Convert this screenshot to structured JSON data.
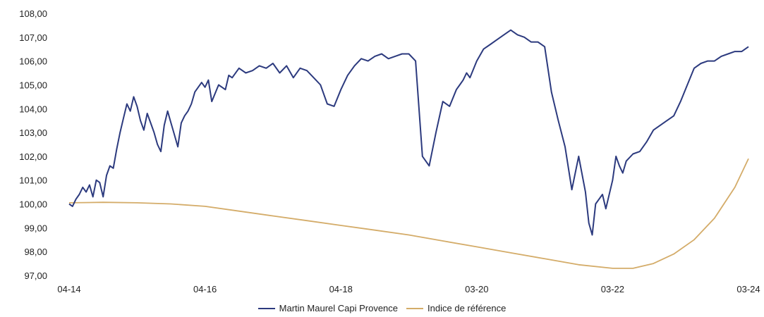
{
  "chart_data": {
    "type": "line",
    "title": "",
    "xlabel": "",
    "ylabel": "",
    "ylim": [
      97,
      108
    ],
    "y_ticks": [
      "97,00",
      "98,00",
      "99,00",
      "100,00",
      "101,00",
      "102,00",
      "103,00",
      "104,00",
      "105,00",
      "106,00",
      "107,00",
      "108,00"
    ],
    "x_ticks": [
      "04-14",
      "04-16",
      "04-18",
      "03-20",
      "03-22",
      "03-24"
    ],
    "x_range": [
      0,
      10
    ],
    "series": [
      {
        "name": "Martin Maurel Capi Provence",
        "color": "#2c3a7e",
        "x": [
          0,
          0.05,
          0.1,
          0.15,
          0.2,
          0.25,
          0.3,
          0.35,
          0.4,
          0.45,
          0.5,
          0.55,
          0.6,
          0.65,
          0.7,
          0.75,
          0.8,
          0.85,
          0.9,
          0.95,
          1.0,
          1.05,
          1.1,
          1.15,
          1.2,
          1.25,
          1.3,
          1.35,
          1.4,
          1.45,
          1.5,
          1.55,
          1.6,
          1.65,
          1.7,
          1.75,
          1.8,
          1.85,
          1.9,
          1.95,
          2.0,
          2.05,
          2.1,
          2.2,
          2.3,
          2.35,
          2.4,
          2.5,
          2.6,
          2.7,
          2.8,
          2.9,
          3.0,
          3.1,
          3.2,
          3.3,
          3.4,
          3.5,
          3.6,
          3.7,
          3.8,
          3.9,
          4.0,
          4.1,
          4.2,
          4.3,
          4.4,
          4.5,
          4.6,
          4.7,
          4.8,
          4.9,
          5.0,
          5.1,
          5.2,
          5.3,
          5.4,
          5.5,
          5.6,
          5.7,
          5.75,
          5.8,
          5.85,
          5.9,
          6.0,
          6.1,
          6.2,
          6.3,
          6.4,
          6.5,
          6.6,
          6.7,
          6.8,
          6.9,
          7.0,
          7.1,
          7.2,
          7.3,
          7.4,
          7.5,
          7.6,
          7.65,
          7.7,
          7.75,
          7.8,
          7.85,
          7.9,
          8.0,
          8.05,
          8.1,
          8.15,
          8.2,
          8.3,
          8.4,
          8.5,
          8.6,
          8.7,
          8.8,
          8.9,
          9.0,
          9.1,
          9.2,
          9.3,
          9.4,
          9.5,
          9.6,
          9.7,
          9.8,
          9.9,
          9.95,
          10.0
        ],
        "values": [
          100.0,
          99.9,
          100.2,
          100.4,
          100.7,
          100.5,
          100.8,
          100.3,
          101.0,
          100.9,
          100.3,
          101.2,
          101.6,
          101.5,
          102.3,
          103.0,
          103.6,
          104.2,
          103.9,
          104.5,
          104.1,
          103.5,
          103.1,
          103.8,
          103.4,
          103.0,
          102.5,
          102.2,
          103.3,
          103.9,
          103.4,
          102.9,
          102.4,
          103.4,
          103.7,
          103.9,
          104.2,
          104.7,
          104.9,
          105.1,
          104.9,
          105.2,
          104.3,
          105.0,
          104.8,
          105.4,
          105.3,
          105.7,
          105.5,
          105.6,
          105.8,
          105.7,
          105.9,
          105.5,
          105.8,
          105.3,
          105.7,
          105.6,
          105.3,
          105.0,
          104.2,
          104.1,
          104.8,
          105.4,
          105.8,
          106.1,
          106.0,
          106.2,
          106.3,
          106.1,
          106.2,
          106.3,
          106.3,
          106.0,
          102.0,
          101.6,
          103.0,
          104.3,
          104.1,
          104.8,
          105.0,
          105.2,
          105.5,
          105.3,
          106.0,
          106.5,
          106.7,
          106.9,
          107.1,
          107.3,
          107.1,
          107.0,
          106.8,
          106.8,
          106.6,
          104.7,
          103.5,
          102.4,
          100.6,
          102.0,
          100.5,
          99.2,
          98.7,
          100.0,
          100.2,
          100.4,
          99.8,
          101.0,
          102.0,
          101.6,
          101.3,
          101.8,
          102.1,
          102.2,
          102.6,
          103.1,
          103.3,
          103.5,
          103.7,
          104.3,
          105.0,
          105.7,
          105.9,
          106.0,
          106.0,
          106.2,
          106.3,
          106.4,
          106.4,
          106.5,
          106.6
        ]
      },
      {
        "name": "Indice de référence",
        "color": "#d4ac69",
        "x": [
          0,
          0.5,
          1.0,
          1.5,
          2.0,
          2.5,
          3.0,
          3.5,
          4.0,
          4.5,
          5.0,
          5.5,
          6.0,
          6.5,
          7.0,
          7.5,
          8.0,
          8.3,
          8.6,
          8.9,
          9.2,
          9.5,
          9.8,
          10.0
        ],
        "values": [
          100.05,
          100.07,
          100.05,
          100.0,
          99.9,
          99.7,
          99.5,
          99.3,
          99.1,
          98.9,
          98.7,
          98.45,
          98.2,
          97.95,
          97.7,
          97.45,
          97.3,
          97.3,
          97.5,
          97.9,
          98.5,
          99.4,
          100.7,
          101.9
        ]
      }
    ],
    "legend_position": "bottom-center",
    "grid": false
  }
}
